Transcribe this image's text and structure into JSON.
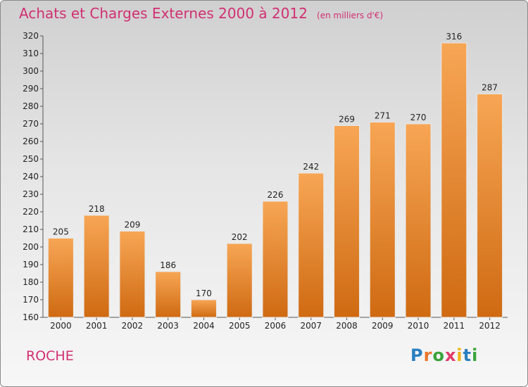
{
  "header": {
    "title": "Achats et Charges Externes 2000 à 2012",
    "unit": "(en milliers d'€)"
  },
  "footer": {
    "commune": "ROCHE",
    "logo_text": "Proxiti",
    "logo_colors": [
      "#2a7fc0",
      "#e9762a",
      "#3aa23a",
      "#e23a6a",
      "#f2b418",
      "#2a7fc0",
      "#3aa23a"
    ]
  },
  "colors": {
    "title": "#d12f72",
    "bar_top": "#f7a655",
    "bar_bottom": "#cf6a12"
  },
  "chart_data": {
    "type": "bar",
    "title": "Achats et Charges Externes 2000 à 2012",
    "subtitle": "(en milliers d'€)",
    "categories": [
      "2000",
      "2001",
      "2002",
      "2003",
      "2004",
      "2005",
      "2006",
      "2007",
      "2008",
      "2009",
      "2010",
      "2011",
      "2012"
    ],
    "values": [
      205,
      218,
      209,
      186,
      170,
      202,
      226,
      242,
      269,
      271,
      270,
      316,
      287
    ],
    "xlabel": "",
    "ylabel": "",
    "ylim": [
      160,
      320
    ],
    "yticks": [
      160,
      170,
      180,
      190,
      200,
      210,
      220,
      230,
      240,
      250,
      260,
      270,
      280,
      290,
      300,
      310,
      320
    ],
    "grid": false,
    "data_labels": true
  }
}
